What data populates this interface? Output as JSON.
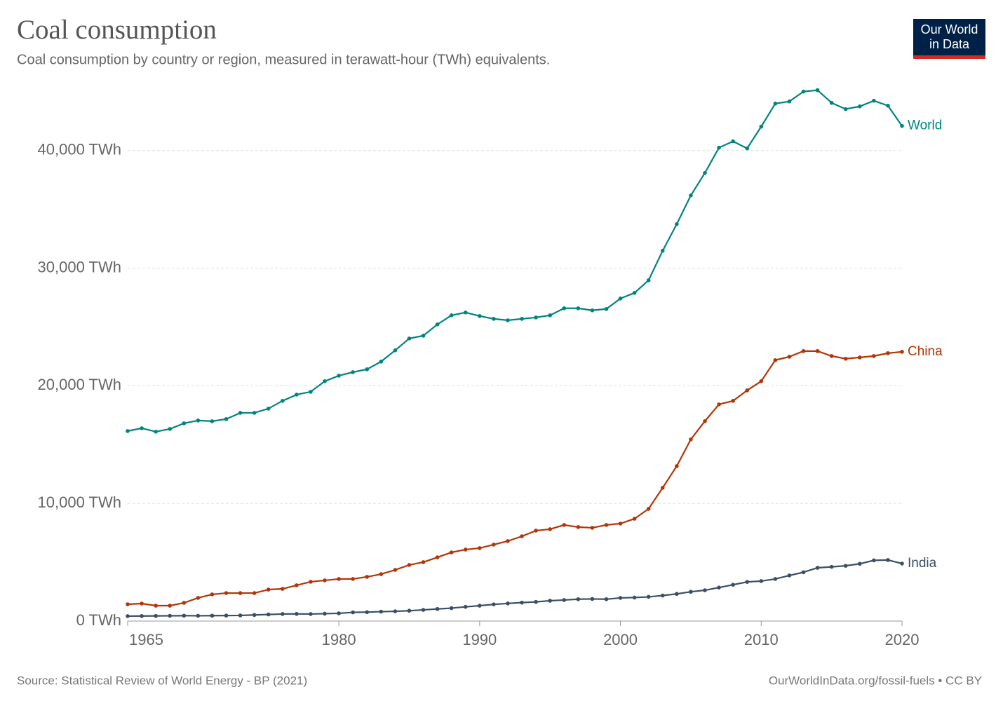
{
  "chart_data": {
    "type": "line",
    "title": "Coal consumption",
    "subtitle": "Coal consumption by country or region, measured in terawatt-hour (TWh) equivalents.",
    "x": [
      1965,
      1966,
      1967,
      1968,
      1969,
      1970,
      1971,
      1972,
      1973,
      1974,
      1975,
      1976,
      1977,
      1978,
      1979,
      1980,
      1981,
      1982,
      1983,
      1984,
      1985,
      1986,
      1987,
      1988,
      1989,
      1990,
      1991,
      1992,
      1993,
      1994,
      1995,
      1996,
      1997,
      1998,
      1999,
      2000,
      2001,
      2002,
      2003,
      2004,
      2005,
      2006,
      2007,
      2008,
      2009,
      2010,
      2011,
      2012,
      2013,
      2014,
      2015,
      2016,
      2017,
      2018,
      2019,
      2020
    ],
    "series": [
      {
        "name": "World",
        "color": "#00847e",
        "values": [
          16155,
          16390,
          16100,
          16330,
          16810,
          17050,
          16990,
          17170,
          17700,
          17700,
          18060,
          18720,
          19250,
          19490,
          20390,
          20860,
          21160,
          21400,
          22060,
          23010,
          24020,
          24260,
          25220,
          25990,
          26230,
          25930,
          25690,
          25570,
          25690,
          25810,
          25990,
          26590,
          26590,
          26410,
          26530,
          27420,
          27900,
          28970,
          31480,
          33740,
          36180,
          38090,
          40240,
          40780,
          40180,
          42030,
          43990,
          44170,
          45010,
          45130,
          44050,
          43520,
          43750,
          44230,
          43810,
          42090
        ]
      },
      {
        "name": "China",
        "color": "#b13507",
        "values": [
          1430,
          1490,
          1310,
          1310,
          1550,
          1970,
          2270,
          2380,
          2380,
          2380,
          2680,
          2740,
          3040,
          3340,
          3460,
          3580,
          3580,
          3760,
          3990,
          4350,
          4770,
          5010,
          5420,
          5840,
          6080,
          6200,
          6500,
          6800,
          7210,
          7690,
          7810,
          8170,
          7990,
          7930,
          8170,
          8290,
          8700,
          9540,
          11330,
          13170,
          15440,
          16990,
          18420,
          18720,
          19610,
          20390,
          22180,
          22470,
          22950,
          22950,
          22530,
          22300,
          22410,
          22530,
          22770,
          22890
        ]
      },
      {
        "name": "India",
        "color": "#3c4e66",
        "values": [
          420,
          430,
          440,
          450,
          460,
          450,
          460,
          470,
          480,
          520,
          560,
          600,
          610,
          600,
          630,
          660,
          740,
          760,
          800,
          830,
          880,
          950,
          1030,
          1100,
          1210,
          1310,
          1420,
          1500,
          1570,
          1630,
          1730,
          1790,
          1860,
          1880,
          1860,
          1970,
          2000,
          2060,
          2170,
          2310,
          2490,
          2620,
          2850,
          3090,
          3330,
          3400,
          3580,
          3880,
          4150,
          4530,
          4610,
          4700,
          4870,
          5160,
          5190,
          4890
        ]
      }
    ],
    "xlim": [
      1965,
      2020
    ],
    "xticks": [
      1965,
      1980,
      1990,
      2000,
      2010,
      2020
    ],
    "ylim": [
      0,
      46000
    ],
    "yticks": [
      {
        "value": 0,
        "label": "0 TWh"
      },
      {
        "value": 10000,
        "label": "10,000 TWh"
      },
      {
        "value": 20000,
        "label": "20,000 TWh"
      },
      {
        "value": 30000,
        "label": "30,000 TWh"
      },
      {
        "value": 40000,
        "label": "40,000 TWh"
      }
    ],
    "grid": true
  },
  "logo": [
    "Our World",
    "in Data"
  ],
  "footer": {
    "source": "Source: Statistical Review of World Energy - BP (2021)",
    "url": "OurWorldInData.org/fossil-fuels • CC BY"
  }
}
